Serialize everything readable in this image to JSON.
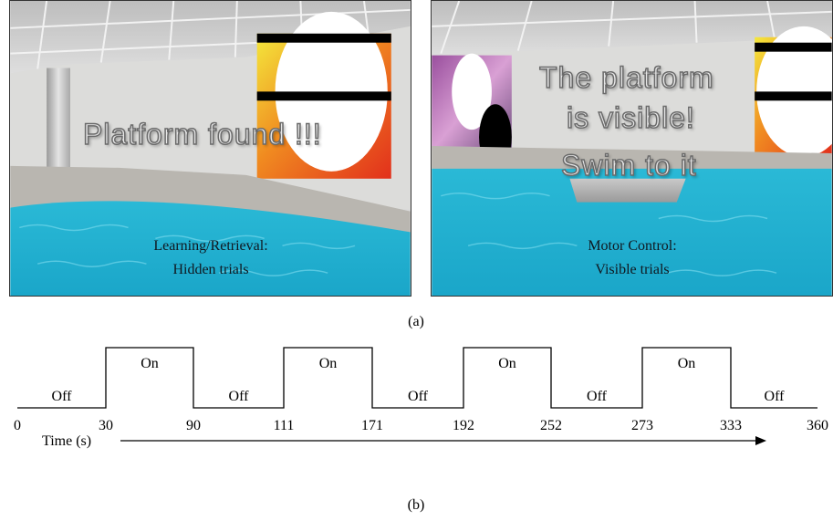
{
  "panels": [
    {
      "id": "left",
      "overlay_message": "Platform found !!!",
      "caption_line1": "Learning/Retrieval:",
      "caption_line2": "Hidden trials"
    },
    {
      "id": "right",
      "overlay_message_line1": "The platform",
      "overlay_message_line2": "is visible!",
      "overlay_message_line3": "Swim to it",
      "caption_line1": "Motor Control:",
      "caption_line2": "Visible trials"
    }
  ],
  "subfigure_labels": {
    "a": "(a)",
    "b": "(b)"
  },
  "timeline": {
    "segments": [
      {
        "state": "Off",
        "start": 0,
        "end": 30
      },
      {
        "state": "On",
        "start": 30,
        "end": 90
      },
      {
        "state": "Off",
        "start": 90,
        "end": 111
      },
      {
        "state": "On",
        "start": 111,
        "end": 171
      },
      {
        "state": "Off",
        "start": 171,
        "end": 192
      },
      {
        "state": "On",
        "start": 192,
        "end": 252
      },
      {
        "state": "Off",
        "start": 252,
        "end": 273
      },
      {
        "state": "On",
        "start": 273,
        "end": 333
      },
      {
        "state": "Off",
        "start": 333,
        "end": 360
      }
    ],
    "ticks": [
      "0",
      "30",
      "90",
      "111",
      "171",
      "192",
      "252",
      "273",
      "333",
      "360"
    ],
    "axis_label": "Time (s)",
    "colors": {
      "line": "#000000"
    }
  },
  "colors": {
    "water": "#1fb8d6",
    "wall": "#d8d8d6",
    "ceiling": "#cfcfcf",
    "poster_red": "#e83a1e",
    "poster_yellow": "#f2e43a"
  }
}
